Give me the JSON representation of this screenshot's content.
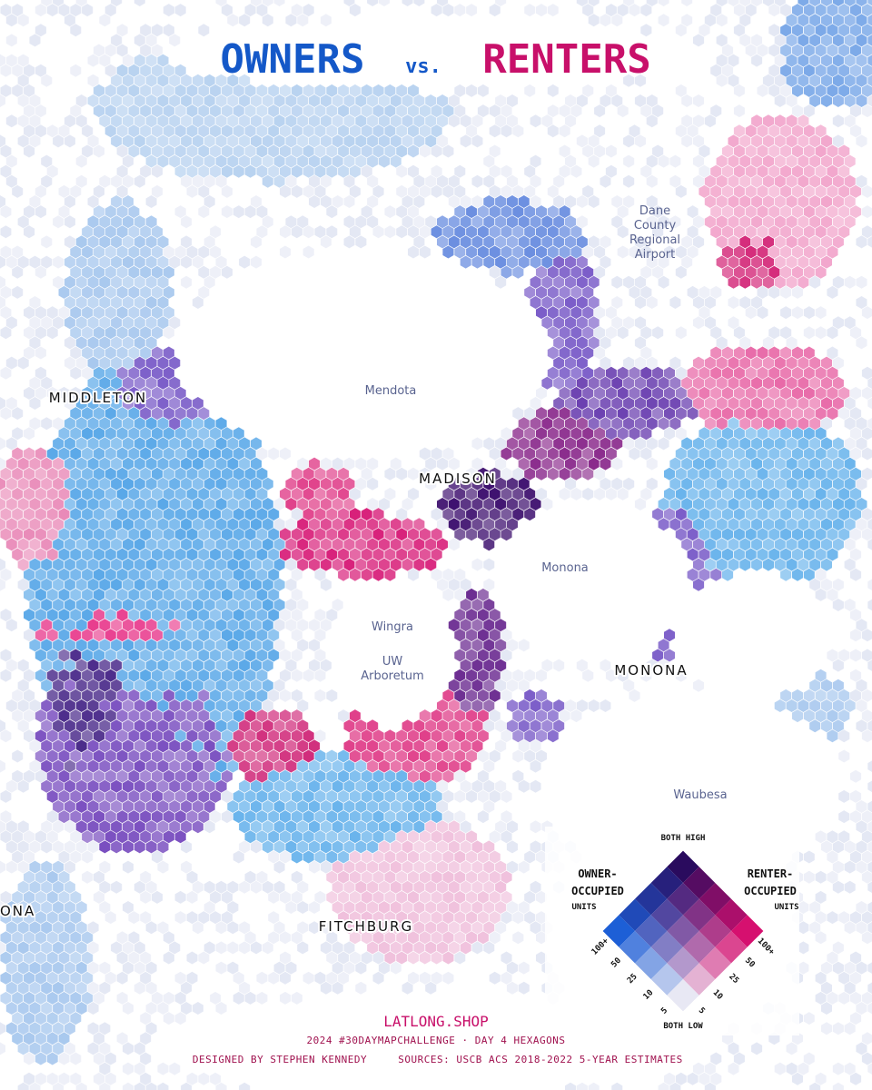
{
  "title": {
    "owners": "OWNERS",
    "vs": "vs.",
    "renters": "RENTERS"
  },
  "places": {
    "airport": [
      "Dane",
      "County",
      "Regional",
      "Airport"
    ],
    "middleton": "MIDDLETON",
    "mendota": "Mendota",
    "madison": "MADISON",
    "monona_lake": "Monona",
    "wingra": "Wingra",
    "arboretum": [
      "UW",
      "Arboretum"
    ],
    "monona": "MONONA",
    "waubesa": "Waubesa",
    "verona": "ONA",
    "fitchburg": "FITCHBURG"
  },
  "legend": {
    "top": "BOTH HIGH",
    "bottom": "BOTH LOW",
    "left": [
      "OWNER-",
      "OCCUPIED",
      "UNITS"
    ],
    "right": [
      "RENTER-",
      "OCCUPIED",
      "UNITS"
    ],
    "ticks": [
      "5",
      "10",
      "25",
      "50",
      "100+"
    ]
  },
  "footer": {
    "site": "LATLONG.SHOP",
    "challenge": "2024 #30DAYMAPCHALLENGE · DAY 4 HEXAGONS",
    "credit": "DESIGNED BY STEPHEN KENNEDY",
    "sources": "SOURCES: USCB ACS 2018-2022 5-YEAR ESTIMATES"
  }
}
